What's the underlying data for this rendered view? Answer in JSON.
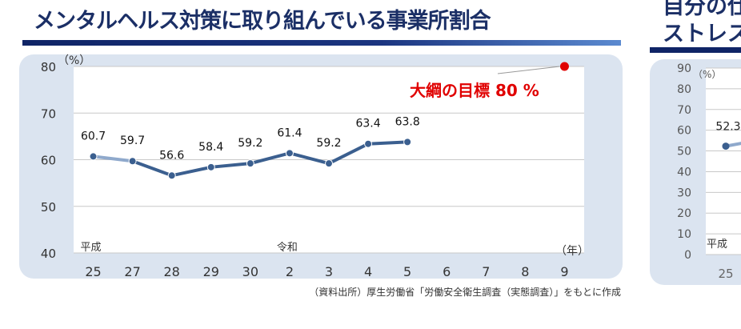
{
  "main_title": "メンタルヘルス対策に取り組んでいる事業所割合",
  "source_note": "（資料出所）厚生労働省「労働安全衛生調査（実態調査）」をもとに作成",
  "colors": {
    "line": "#3b5f8f",
    "line_light": "#8fa9cc",
    "target": "#e00000",
    "title": "#1b2f66",
    "panel": "#dbe4f0"
  },
  "chart_data": [
    {
      "type": "line",
      "title": "メンタルヘルス対策に取り組んでいる事業所割合",
      "ylabel": "(%)",
      "xlabel": "(年)",
      "ylim": [
        40,
        80
      ],
      "yticks": [
        40,
        50,
        60,
        70,
        80
      ],
      "grid": true,
      "categories": [
        "25",
        "27",
        "28",
        "29",
        "30",
        "2",
        "3",
        "4",
        "5",
        "6",
        "7",
        "8",
        "9"
      ],
      "era_labels": [
        {
          "category": "25",
          "label": "平成"
        },
        {
          "category": "2",
          "label": "令和"
        }
      ],
      "series": [
        {
          "values": [
            60.7,
            59.7,
            56.6,
            58.4,
            59.2,
            61.4,
            59.2,
            63.4,
            63.8,
            null,
            null,
            null,
            null
          ],
          "data_labels": [
            "60.7",
            "59.7",
            "56.6",
            "58.4",
            "59.2",
            "61.4",
            "59.2",
            "63.4",
            "63.8"
          ]
        }
      ],
      "target": {
        "category": "9",
        "value": 80,
        "label": "大綱の目標 80 %"
      }
    },
    {
      "type": "line",
      "title_visible": [
        "自分の仕",
        "ストレス"
      ],
      "ylabel": "(%)",
      "ylim": [
        0,
        90
      ],
      "yticks": [
        0,
        10,
        20,
        30,
        40,
        50,
        60,
        70,
        80,
        90
      ],
      "grid": true,
      "categories": [
        "25"
      ],
      "era_labels": [
        {
          "category": "25",
          "label": "平成"
        }
      ],
      "series": [
        {
          "values": [
            52.3
          ],
          "data_labels": [
            "52.3"
          ]
        }
      ]
    }
  ]
}
